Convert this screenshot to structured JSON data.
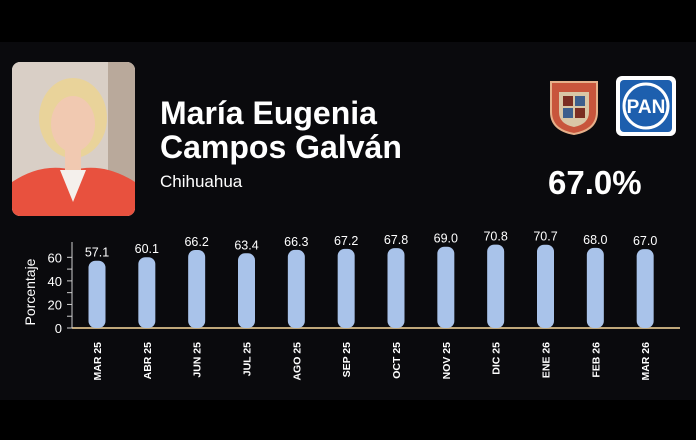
{
  "profile": {
    "name_line1": "María Eugenia",
    "name_line2": "Campos Galván",
    "state": "Chihuahua",
    "approval": "67.0%"
  },
  "logos": {
    "left": "state-coat-of-arms-icon",
    "right": {
      "icon": "pan-party-logo-icon",
      "text": "PAN",
      "color": "#1d5fae"
    }
  },
  "colors": {
    "bar": "#a9c3ea",
    "axis": "#c0a77a"
  },
  "chart_data": {
    "type": "bar",
    "categories": [
      "MAR 25",
      "ABR 25",
      "JUN 25",
      "JUL 25",
      "AGO 25",
      "SEP 25",
      "OCT 25",
      "NOV 25",
      "DIC 25",
      "ENE 26",
      "FEB 26",
      "MAR 26"
    ],
    "values": [
      57.1,
      60.1,
      66.2,
      63.4,
      66.3,
      67.2,
      67.8,
      69.0,
      70.8,
      70.7,
      68.0,
      67.0
    ],
    "value_labels": [
      "57.1",
      "60.1",
      "66.2",
      "63.4",
      "66.3",
      "67.2",
      "67.8",
      "69.0",
      "70.8",
      "70.7",
      "68.0",
      "67.0"
    ],
    "title": "",
    "xlabel": "",
    "ylabel": "Porcentaje",
    "ylim": [
      0,
      73
    ],
    "yticks": [
      0,
      20,
      40,
      60
    ],
    "grid": false,
    "legend": "none"
  }
}
